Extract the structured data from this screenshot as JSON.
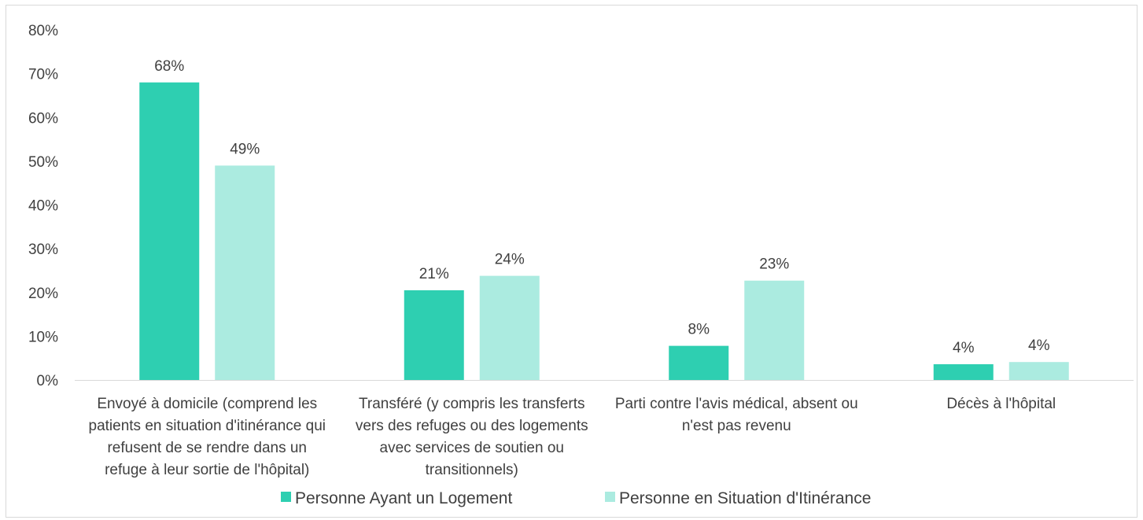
{
  "chart_data": {
    "type": "bar",
    "categories": [
      [
        "Envoyé à domicile (comprend les",
        "patients en situation d'itinérance qui",
        "refusent de se rendre dans un",
        "refuge à leur sortie de l'hôpital)"
      ],
      [
        "Transféré (y compris les transferts",
        "vers des refuges ou des logements",
        "avec services de soutien ou",
        "transitionnels)"
      ],
      [
        "Parti contre l'avis médical, absent ou",
        "n'est pas revenu"
      ],
      [
        "Décès à l'hôpital"
      ]
    ],
    "series": [
      {
        "name": "Personne Ayant un Logement",
        "color": "#2ecfb1",
        "values": [
          68,
          20.5,
          7.8,
          3.6
        ],
        "labels": [
          "68%",
          "21%",
          "8%",
          "4%"
        ]
      },
      {
        "name": "Personne en Situation d'Itinérance",
        "color": "#abebe0",
        "values": [
          49,
          23.8,
          22.7,
          4.1
        ],
        "labels": [
          "49%",
          "24%",
          "23%",
          "4%"
        ]
      }
    ],
    "ylim": [
      0,
      80
    ],
    "yticks": [
      0,
      10,
      20,
      30,
      40,
      50,
      60,
      70,
      80
    ],
    "ytick_labels": [
      "0%",
      "10%",
      "20%",
      "30%",
      "40%",
      "50%",
      "60%",
      "70%",
      "80%"
    ],
    "legend_position": "bottom",
    "grid": false
  }
}
